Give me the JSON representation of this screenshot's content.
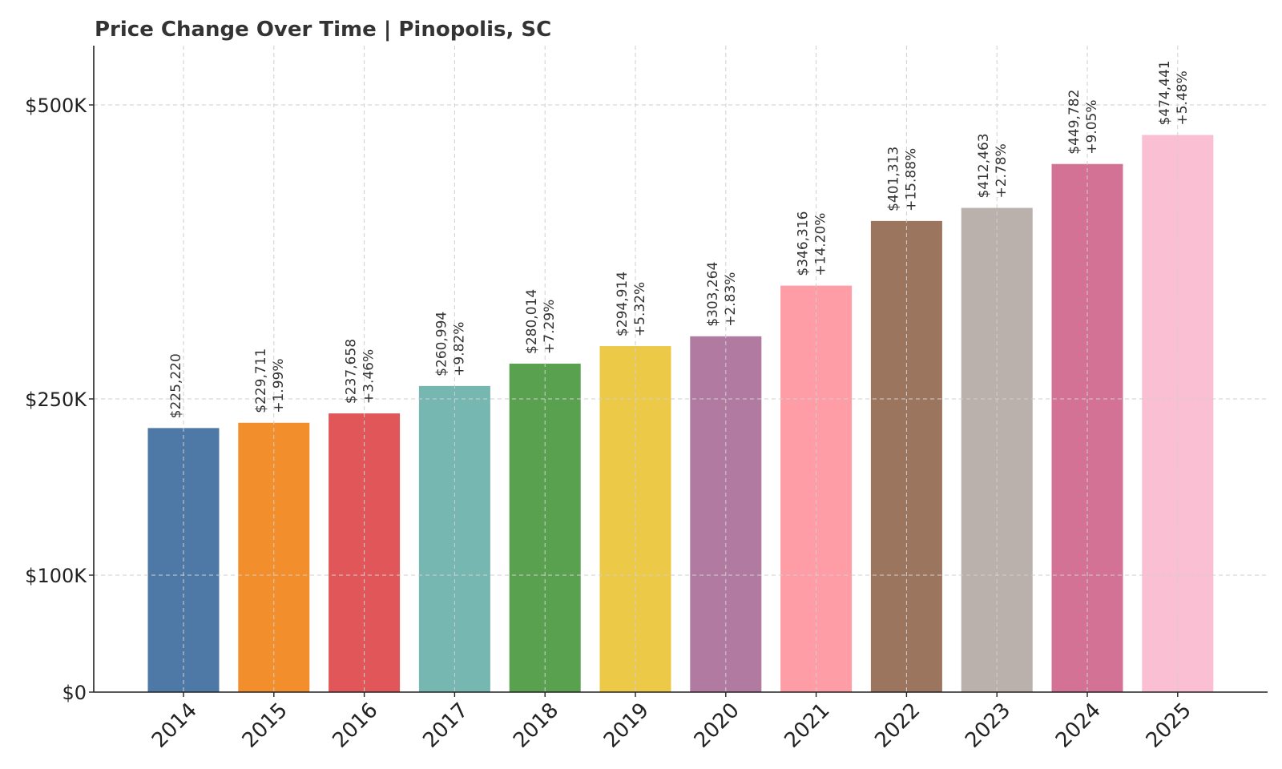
{
  "chart_data": {
    "type": "bar",
    "title": "Price Change Over Time | Pinopolis, SC",
    "xlabel": "",
    "ylabel": "",
    "categories": [
      "2014",
      "2015",
      "2016",
      "2017",
      "2018",
      "2019",
      "2020",
      "2021",
      "2022",
      "2023",
      "2024",
      "2025"
    ],
    "values": [
      225220,
      229711,
      237658,
      260994,
      280014,
      294914,
      303264,
      346316,
      401313,
      412463,
      449782,
      474441
    ],
    "value_labels": [
      "$225,220",
      "$229,711",
      "$237,658",
      "$260,994",
      "$280,014",
      "$294,914",
      "$303,264",
      "$346,316",
      "$401,313",
      "$412,463",
      "$449,782",
      "$474,441"
    ],
    "change_labels": [
      "",
      "+1.99%",
      "+3.46%",
      "+9.82%",
      "+7.29%",
      "+5.32%",
      "+2.83%",
      "+14.20%",
      "+15.88%",
      "+2.78%",
      "+9.05%",
      "+5.48%"
    ],
    "colors": [
      "#4e79a7",
      "#f28e2b",
      "#e15759",
      "#76b7b2",
      "#59a14f",
      "#edc948",
      "#b07aa1",
      "#ff9da7",
      "#9c755f",
      "#bab0ac",
      "#d37295",
      "#fabfd2"
    ],
    "y_ticks": [
      0,
      100000,
      250000,
      500000
    ],
    "y_tick_labels": [
      "$0",
      "$100K",
      "$250K",
      "$500K"
    ],
    "ylim": [
      0,
      550000
    ],
    "y_scale": "piecewise",
    "grid": true,
    "legend": "none"
  }
}
